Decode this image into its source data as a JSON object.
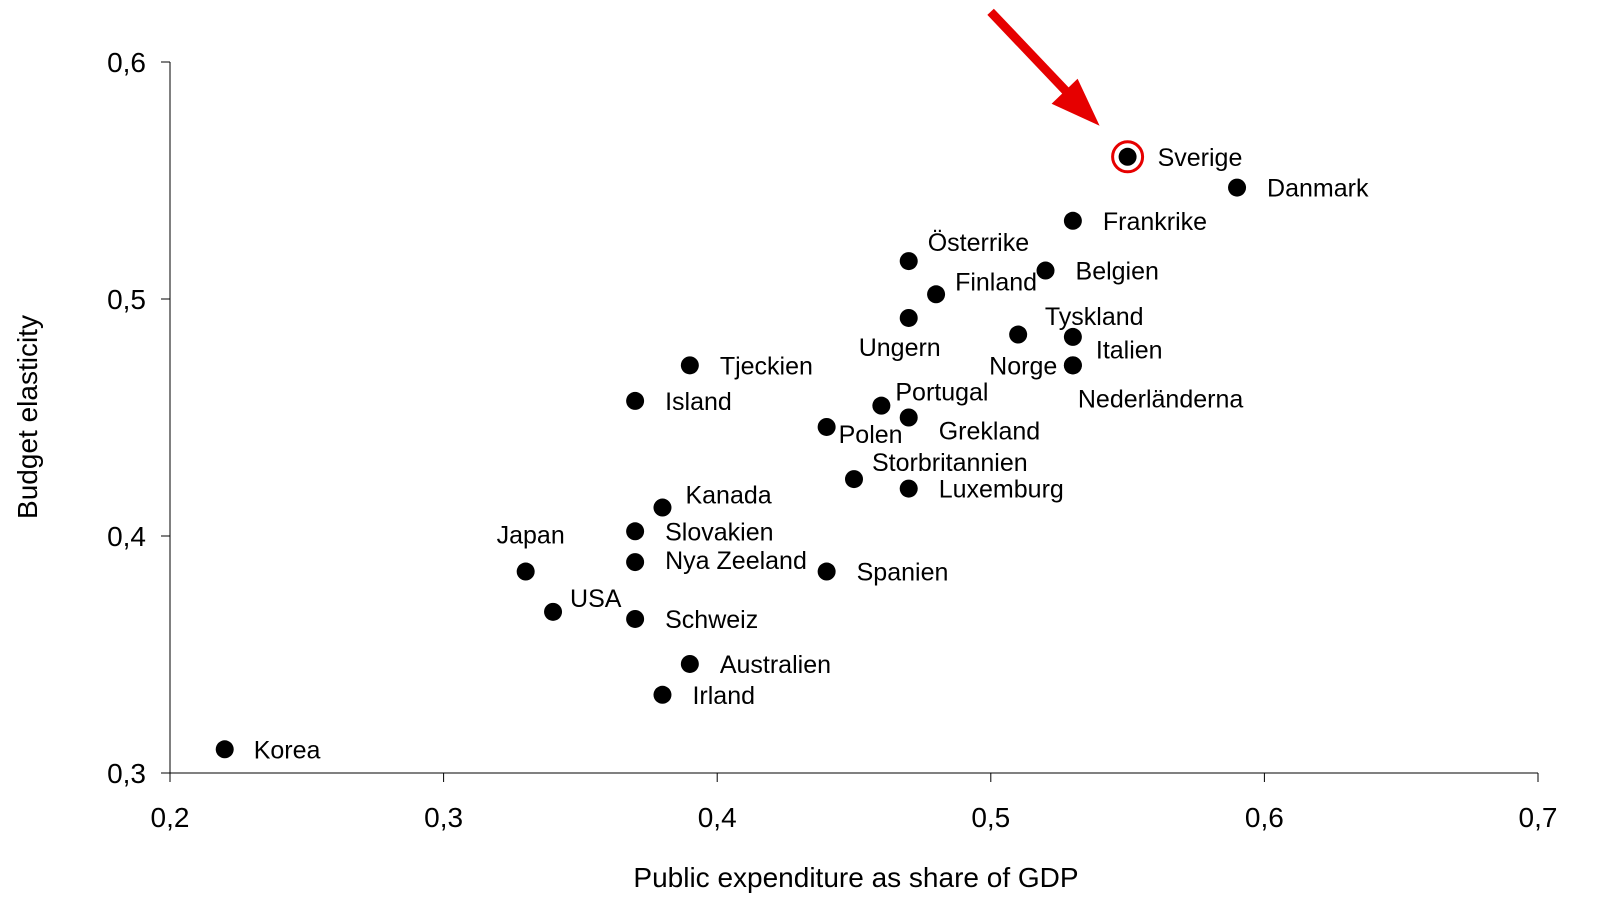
{
  "chart_data": {
    "type": "scatter",
    "xlabel": "Public expenditure as share of GDP",
    "ylabel": "Budget elasticity",
    "xlim": [
      0.2,
      0.7
    ],
    "ylim": [
      0.3,
      0.6
    ],
    "x_ticks": [
      "0,2",
      "0,3",
      "0,4",
      "0,5",
      "0,6",
      "0,7"
    ],
    "y_ticks": [
      "0,3",
      "0,4",
      "0,5",
      "0,6"
    ],
    "grid": false,
    "highlight": {
      "point": "Sverige",
      "color": "#e60000",
      "marker": "red circle and arrow"
    },
    "points": [
      {
        "label": "Sverige",
        "x": 0.55,
        "y": 0.56
      },
      {
        "label": "Danmark",
        "x": 0.59,
        "y": 0.547
      },
      {
        "label": "Frankrike",
        "x": 0.53,
        "y": 0.533
      },
      {
        "label": "Österrike",
        "x": 0.47,
        "y": 0.516
      },
      {
        "label": "Belgien",
        "x": 0.52,
        "y": 0.512
      },
      {
        "label": "Finland",
        "x": 0.48,
        "y": 0.502
      },
      {
        "label": "Ungern",
        "x": 0.47,
        "y": 0.492
      },
      {
        "label": "Tyskland",
        "x": 0.53,
        "y": 0.484
      },
      {
        "label": "Norge",
        "x": 0.51,
        "y": 0.485
      },
      {
        "label": "Italien",
        "x": 0.53,
        "y": 0.472
      },
      {
        "label": "Nederländerna",
        "x": 0.53,
        "y": 0.472
      },
      {
        "label": "Tjeckien",
        "x": 0.39,
        "y": 0.472
      },
      {
        "label": "Island",
        "x": 0.37,
        "y": 0.457
      },
      {
        "label": "Portugal",
        "x": 0.46,
        "y": 0.455
      },
      {
        "label": "Grekland",
        "x": 0.47,
        "y": 0.45
      },
      {
        "label": "Polen",
        "x": 0.44,
        "y": 0.446
      },
      {
        "label": "Storbritannien",
        "x": 0.45,
        "y": 0.424
      },
      {
        "label": "Luxemburg",
        "x": 0.47,
        "y": 0.42
      },
      {
        "label": "Kanada",
        "x": 0.38,
        "y": 0.412
      },
      {
        "label": "Slovakien",
        "x": 0.37,
        "y": 0.402
      },
      {
        "label": "Nya Zeeland",
        "x": 0.37,
        "y": 0.389
      },
      {
        "label": "Japan",
        "x": 0.33,
        "y": 0.385
      },
      {
        "label": "Spanien",
        "x": 0.44,
        "y": 0.385
      },
      {
        "label": "USA",
        "x": 0.34,
        "y": 0.368
      },
      {
        "label": "Schweiz",
        "x": 0.37,
        "y": 0.365
      },
      {
        "label": "Australien",
        "x": 0.39,
        "y": 0.346
      },
      {
        "label": "Irland",
        "x": 0.38,
        "y": 0.333
      },
      {
        "label": "Korea",
        "x": 0.22,
        "y": 0.31
      }
    ]
  }
}
